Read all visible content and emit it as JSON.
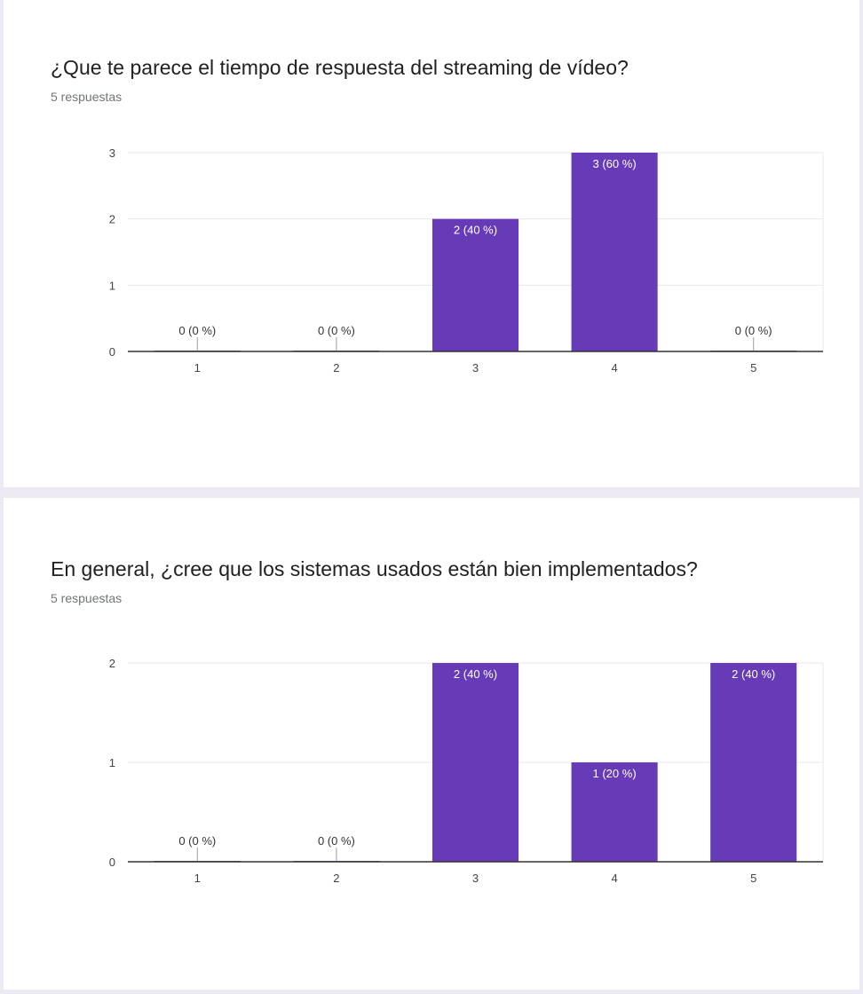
{
  "questions": [
    {
      "title": "¿Que te parece el tiempo de respuesta del streaming de vídeo?",
      "responses": "5 respuestas"
    },
    {
      "title": "En general, ¿cree que los sistemas usados están bien implementados?",
      "responses": "5 respuestas"
    }
  ],
  "colors": {
    "bar": "#673ab7",
    "grid": "#e8e8e8",
    "axis": "#333333"
  },
  "chart_data": [
    {
      "type": "bar",
      "categories": [
        "1",
        "2",
        "3",
        "4",
        "5"
      ],
      "values": [
        0,
        0,
        2,
        3,
        0
      ],
      "data_labels": [
        "0 (0 %)",
        "0 (0 %)",
        "2 (40 %)",
        "3 (60 %)",
        "0 (0 %)"
      ],
      "yticks": [
        0,
        1,
        2,
        3
      ],
      "ylim": [
        0,
        3
      ],
      "grid": true
    },
    {
      "type": "bar",
      "categories": [
        "1",
        "2",
        "3",
        "4",
        "5"
      ],
      "values": [
        0,
        0,
        2,
        1,
        2
      ],
      "data_labels": [
        "0 (0 %)",
        "0 (0 %)",
        "2 (40 %)",
        "1 (20 %)",
        "2 (40 %)"
      ],
      "yticks": [
        0,
        1,
        2
      ],
      "ylim": [
        0,
        2
      ],
      "grid": true
    }
  ]
}
